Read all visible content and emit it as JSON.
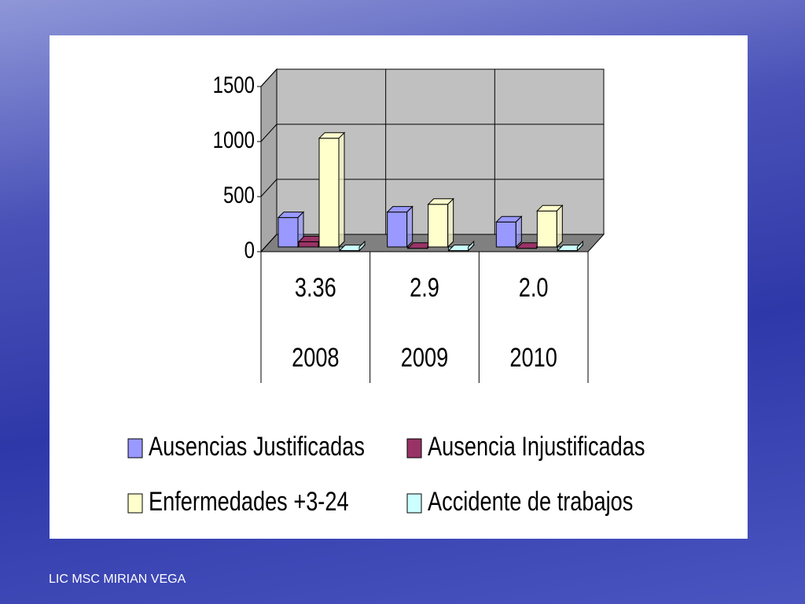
{
  "chart_data": {
    "type": "bar3d",
    "categories": [
      "2008",
      "2009",
      "2010"
    ],
    "category_values": [
      "3.36",
      "2.9",
      "2.0"
    ],
    "series": [
      {
        "name": "Ausencias Justificadas",
        "color": "#9999ff",
        "values": [
          310,
          360,
          270
        ]
      },
      {
        "name": "Ausencia Injustificadas",
        "color": "#993366",
        "values": [
          90,
          30,
          30
        ]
      },
      {
        "name": "Enfermedades +3-24",
        "color": "#ffffcc",
        "values": [
          1030,
          430,
          370
        ]
      },
      {
        "name": "Accidente de trabajos",
        "color": "#ccffff",
        "values": [
          10,
          10,
          10
        ]
      }
    ],
    "ylim": [
      0,
      1500
    ],
    "yticks": [
      0,
      500,
      1000,
      1500
    ],
    "grid": true
  },
  "footer": "LIC MSC MIRIAN VEGA"
}
